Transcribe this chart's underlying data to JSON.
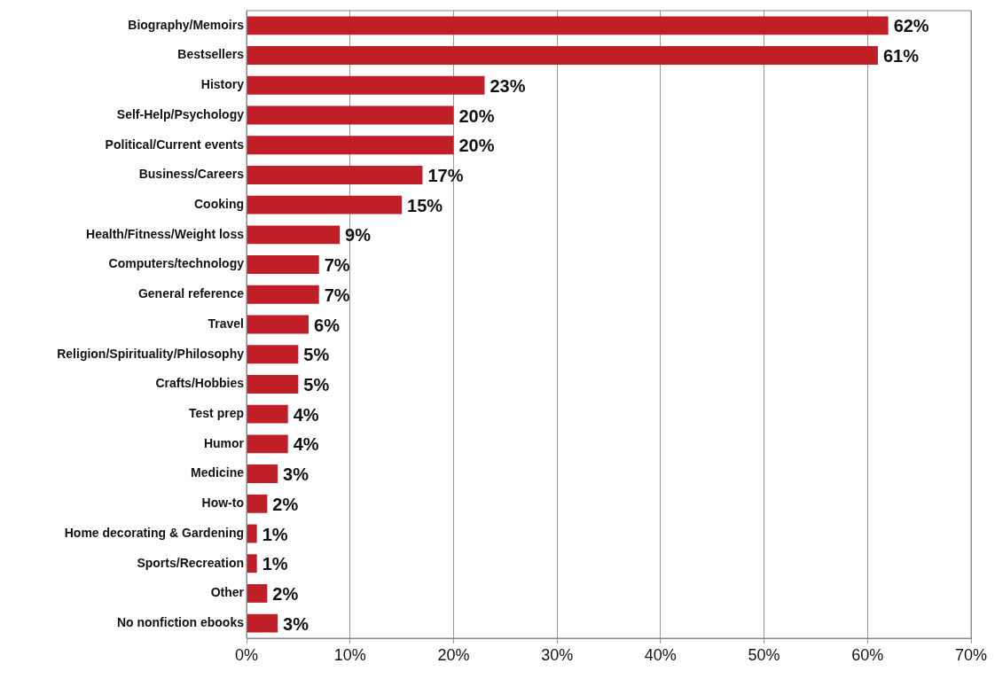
{
  "chart_data": {
    "type": "bar",
    "orientation": "horizontal",
    "categories": [
      "Biography/Memoirs",
      "Bestsellers",
      "History",
      "Self-Help/Psychology",
      "Political/Current events",
      "Business/Careers",
      "Cooking",
      "Health/Fitness/Weight loss",
      "Computers/technology",
      "General reference",
      "Travel",
      "Religion/Spirituality/Philosophy",
      "Crafts/Hobbies",
      "Test prep",
      "Humor",
      "Medicine",
      "How-to",
      "Home decorating & Gardening",
      "Sports/Recreation",
      "Other",
      "No nonfiction ebooks"
    ],
    "values": [
      62,
      61,
      23,
      20,
      20,
      17,
      15,
      9,
      7,
      7,
      6,
      5,
      5,
      4,
      4,
      3,
      2,
      1,
      1,
      2,
      3
    ],
    "color": "#c01f28",
    "xlim": [
      0,
      70
    ],
    "xticks": [
      {
        "value": 0,
        "label": "0%"
      },
      {
        "value": 10,
        "label": "10%"
      },
      {
        "value": 20,
        "label": "20%"
      },
      {
        "value": 30,
        "label": "30%"
      },
      {
        "value": 40,
        "label": "40%"
      },
      {
        "value": 50,
        "label": "50%"
      },
      {
        "value": 60,
        "label": "60%"
      },
      {
        "value": 70,
        "label": "70%"
      }
    ],
    "value_labels": [
      "62%",
      "61%",
      "23%",
      "20%",
      "20%",
      "17%",
      "15%",
      "9%",
      "7%",
      "7%",
      "6%",
      "5%",
      "5%",
      "4%",
      "4%",
      "3%",
      "2%",
      "1%",
      "1%",
      "2%",
      "3%"
    ],
    "grid": "x",
    "legend": false
  }
}
